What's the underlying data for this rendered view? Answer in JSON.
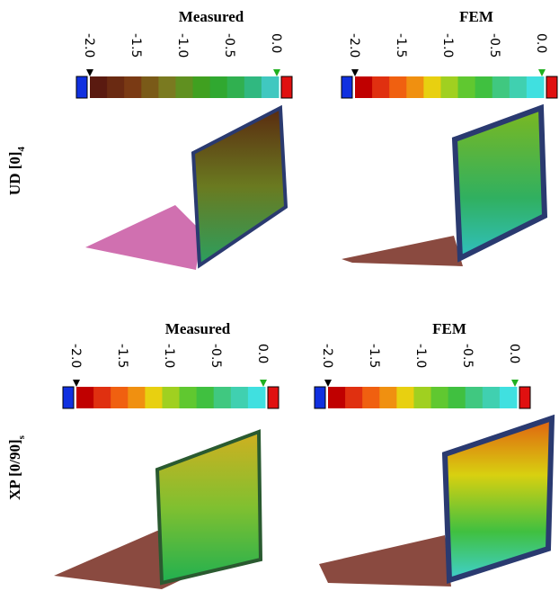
{
  "rows": [
    {
      "label": "UD [0]",
      "subscript": "4",
      "panels": [
        {
          "title": "Measured",
          "ticks": [
            "-2.0",
            "-1.5",
            "-1.0",
            "-0.5",
            "0.0"
          ]
        },
        {
          "title": "FEM",
          "ticks": [
            "-2.0",
            "-1.5",
            "-1.0",
            "-0.5",
            "0.0"
          ]
        }
      ]
    },
    {
      "label": "XP [0/90]",
      "subscript": "s",
      "panels": [
        {
          "title": "Measured",
          "ticks": [
            "-2.0",
            "-1.5",
            "-1.0",
            "-0.5",
            "0.0"
          ]
        },
        {
          "title": "FEM",
          "ticks": [
            "-2.0",
            "-1.5",
            "-1.0",
            "-0.5",
            "0.0"
          ]
        }
      ]
    }
  ]
}
